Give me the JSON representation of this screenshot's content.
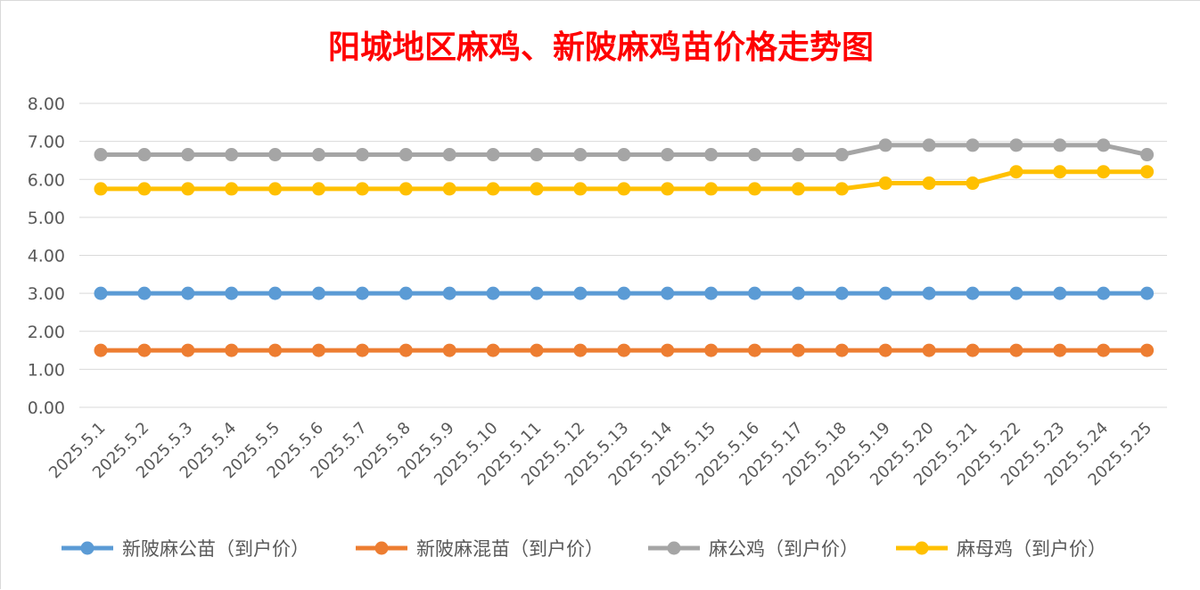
{
  "chart_data": {
    "type": "line",
    "title": "阳城地区麻鸡、新陂麻鸡苗价格走势图",
    "xlabel": "",
    "ylabel": "",
    "ylim": [
      0,
      8
    ],
    "yticks": [
      "0.00",
      "1.00",
      "2.00",
      "3.00",
      "4.00",
      "5.00",
      "6.00",
      "7.00",
      "8.00"
    ],
    "grid": true,
    "legend_position": "bottom",
    "categories": [
      "2025.5.1",
      "2025.5.2",
      "2025.5.3",
      "2025.5.4",
      "2025.5.5",
      "2025.5.6",
      "2025.5.7",
      "2025.5.8",
      "2025.5.9",
      "2025.5.10",
      "2025.5.11",
      "2025.5.12",
      "2025.5.13",
      "2025.5.14",
      "2025.5.15",
      "2025.5.16",
      "2025.5.17",
      "2025.5.18",
      "2025.5.19",
      "2025.5.20",
      "2025.5.21",
      "2025.5.22",
      "2025.5.23",
      "2025.5.24",
      "2025.5.25"
    ],
    "series": [
      {
        "name": "新陂麻公苗（到户价）",
        "color": "#5b9bd5",
        "values": [
          3,
          3,
          3,
          3,
          3,
          3,
          3,
          3,
          3,
          3,
          3,
          3,
          3,
          3,
          3,
          3,
          3,
          3,
          3,
          3,
          3,
          3,
          3,
          3,
          3
        ]
      },
      {
        "name": "新陂麻混苗（到户价）",
        "color": "#ed7d31",
        "values": [
          1.5,
          1.5,
          1.5,
          1.5,
          1.5,
          1.5,
          1.5,
          1.5,
          1.5,
          1.5,
          1.5,
          1.5,
          1.5,
          1.5,
          1.5,
          1.5,
          1.5,
          1.5,
          1.5,
          1.5,
          1.5,
          1.5,
          1.5,
          1.5,
          1.5
        ]
      },
      {
        "name": "麻公鸡（到户价）",
        "color": "#a5a5a5",
        "values": [
          6.65,
          6.65,
          6.65,
          6.65,
          6.65,
          6.65,
          6.65,
          6.65,
          6.65,
          6.65,
          6.65,
          6.65,
          6.65,
          6.65,
          6.65,
          6.65,
          6.65,
          6.65,
          6.9,
          6.9,
          6.9,
          6.9,
          6.9,
          6.9,
          6.65
        ]
      },
      {
        "name": "麻母鸡（到户价）",
        "color": "#ffc000",
        "values": [
          5.75,
          5.75,
          5.75,
          5.75,
          5.75,
          5.75,
          5.75,
          5.75,
          5.75,
          5.75,
          5.75,
          5.75,
          5.75,
          5.75,
          5.75,
          5.75,
          5.75,
          5.75,
          5.9,
          5.9,
          5.9,
          6.2,
          6.2,
          6.2,
          6.2
        ]
      }
    ]
  }
}
